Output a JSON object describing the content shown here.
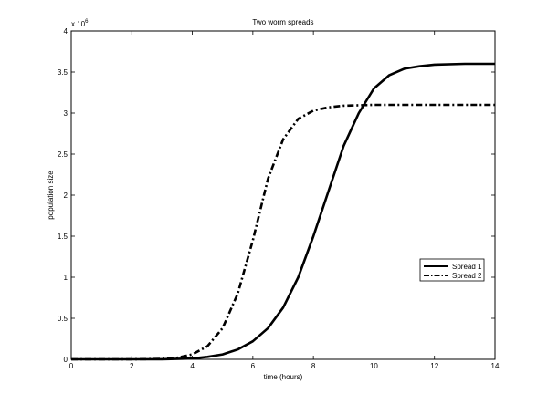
{
  "chart_data": {
    "type": "line",
    "title": "Two worm spreads",
    "xlabel": "time (hours)",
    "ylabel": "population size",
    "y_exponent_label": "x 10",
    "y_exponent_power": "6",
    "xlim": [
      0,
      14
    ],
    "ylim": [
      0,
      4
    ],
    "xticks": [
      "0",
      "2",
      "4",
      "6",
      "8",
      "10",
      "12",
      "14"
    ],
    "yticks": [
      "0",
      "0.5",
      "1",
      "1.5",
      "2",
      "2.5",
      "3",
      "3.5",
      "4"
    ],
    "grid": false,
    "legend_position": "lower-right",
    "series": [
      {
        "name": "Spread 1",
        "style": "solid",
        "color": "#000000",
        "x": [
          0,
          2,
          3,
          4,
          4.5,
          5,
          5.5,
          6,
          6.5,
          7,
          7.5,
          8,
          8.5,
          9,
          9.5,
          10,
          10.5,
          11,
          11.5,
          12,
          13,
          14
        ],
        "y": [
          0,
          0,
          0.001,
          0.01,
          0.03,
          0.06,
          0.12,
          0.22,
          0.38,
          0.63,
          1.0,
          1.5,
          2.05,
          2.6,
          3.0,
          3.3,
          3.46,
          3.54,
          3.57,
          3.59,
          3.6,
          3.6
        ]
      },
      {
        "name": "Spread 2",
        "style": "dash-dot",
        "color": "#000000",
        "x": [
          0,
          2,
          3,
          3.5,
          4,
          4.5,
          5,
          5.5,
          6,
          6.5,
          7,
          7.5,
          8,
          8.5,
          9,
          10,
          11,
          12,
          14
        ],
        "y": [
          0,
          0,
          0.005,
          0.02,
          0.06,
          0.16,
          0.38,
          0.8,
          1.45,
          2.2,
          2.68,
          2.93,
          3.03,
          3.07,
          3.09,
          3.1,
          3.1,
          3.1,
          3.1
        ]
      }
    ]
  }
}
